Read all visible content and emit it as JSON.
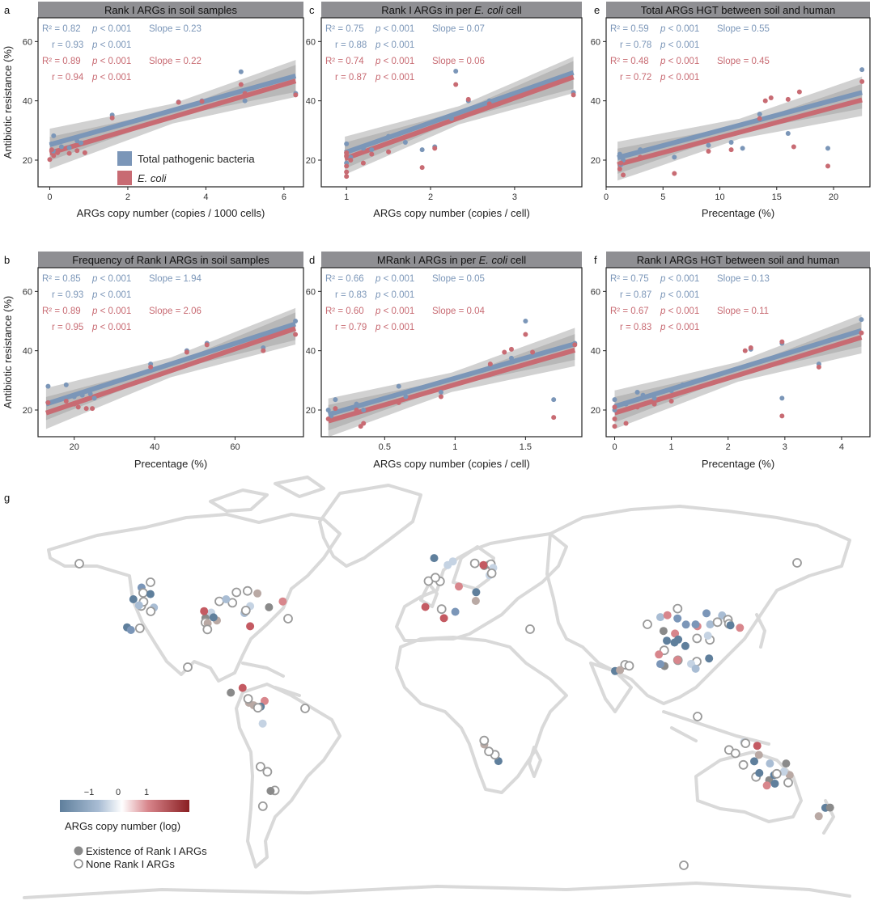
{
  "colors": {
    "blue": "#7b96b8",
    "red": "#c86b73",
    "ribbon": "#9a9a9a",
    "header": "#8f8f93",
    "land": "#d9d9d9",
    "ring": "#9a9a9a"
  },
  "legend_top": {
    "items": [
      {
        "label": "Total pathogenic bacteria",
        "italic": false
      },
      {
        "label": "E. coli",
        "italic": true
      }
    ]
  },
  "chart_data": [
    {
      "panel": "a",
      "type": "scatter",
      "title": "Rank I ARGs in soil samples",
      "xlabel": "ARGs copy number (copies / 1000 cells)",
      "ylabel": "Antibiotic resistance (%)",
      "xlim": [
        -0.3,
        6.5
      ],
      "ylim": [
        11,
        68
      ],
      "xticks": [
        0,
        2,
        4,
        6
      ],
      "yticks": [
        20,
        40,
        60
      ],
      "stats": {
        "blue": [
          "R² = 0.82",
          "p < 0.001",
          "Slope = 0.23",
          "r = 0.93",
          "p < 0.001"
        ],
        "red": [
          "R² = 0.89",
          "p < 0.001",
          "Slope = 0.22",
          "r = 0.94",
          "p < 0.001"
        ]
      },
      "series": [
        {
          "name": "Total pathogenic bacteria",
          "color": "blue",
          "fit": [
            [
              0,
              25.2
            ],
            [
              6.3,
              48.4
            ]
          ],
          "points": [
            [
              0.1,
              28.2
            ],
            [
              0.05,
              25.5
            ],
            [
              0.3,
              24.5
            ],
            [
              0.5,
              24.2
            ],
            [
              0.7,
              26.5
            ],
            [
              0.8,
              25.8
            ],
            [
              1.6,
              35.2
            ],
            [
              3.3,
              39.6
            ],
            [
              3.9,
              40
            ],
            [
              4.9,
              49.8
            ],
            [
              5.0,
              40
            ],
            [
              6.3,
              42.5
            ],
            [
              0.1,
              23
            ]
          ]
        },
        {
          "name": "E. coli",
          "color": "red",
          "fit": [
            [
              0,
              22.4
            ],
            [
              6.3,
              46.7
            ]
          ],
          "points": [
            [
              0.0,
              20.2
            ],
            [
              0.1,
              21.5
            ],
            [
              0.2,
              22.5
            ],
            [
              0.5,
              22.3
            ],
            [
              0.7,
              23.2
            ],
            [
              0.9,
              22.5
            ],
            [
              1.6,
              34.2
            ],
            [
              3.3,
              39.5
            ],
            [
              3.9,
              39.8
            ],
            [
              4.9,
              45.5
            ],
            [
              5.0,
              42.5
            ],
            [
              6.3,
              42
            ],
            [
              0.05,
              23.5
            ]
          ]
        }
      ]
    },
    {
      "panel": "c",
      "type": "scatter",
      "title": "Rank I ARGs in per E. coli cell",
      "xlabel": "ARGs copy number (copies / cell)",
      "ylabel": "",
      "xlim": [
        0.7,
        3.8
      ],
      "ylim": [
        11,
        68
      ],
      "xticks": [
        1,
        2,
        3
      ],
      "yticks": [
        20,
        40,
        60
      ],
      "stats": {
        "blue": [
          "R² = 0.75",
          "p < 0.001",
          "Slope = 0.07",
          "r = 0.88",
          "p < 0.001"
        ],
        "red": [
          "R² = 0.74",
          "p < 0.001",
          "Slope = 0.06",
          "r = 0.87",
          "p < 0.001"
        ]
      },
      "series": [
        {
          "name": "Total pathogenic bacteria",
          "color": "blue",
          "fit": [
            [
              0.98,
              22.5
            ],
            [
              3.7,
              49.5
            ]
          ],
          "points": [
            [
              1.0,
              25.5
            ],
            [
              1.0,
              22.5
            ],
            [
              1.05,
              21
            ],
            [
              1.2,
              24
            ],
            [
              1.3,
              23.5
            ],
            [
              1.5,
              28
            ],
            [
              1.7,
              26
            ],
            [
              1.9,
              23.5
            ],
            [
              2.05,
              24.5
            ],
            [
              2.25,
              34
            ],
            [
              2.3,
              50
            ],
            [
              2.45,
              40
            ],
            [
              2.7,
              40
            ],
            [
              3.7,
              42.8
            ],
            [
              1.0,
              19
            ]
          ]
        },
        {
          "name": "E. coli",
          "color": "red",
          "fit": [
            [
              0.98,
              20.5
            ],
            [
              3.7,
              48
            ]
          ],
          "points": [
            [
              1.0,
              14.5
            ],
            [
              1.0,
              16
            ],
            [
              1.0,
              18
            ],
            [
              1.05,
              20
            ],
            [
              1.2,
              19
            ],
            [
              1.3,
              22
            ],
            [
              1.5,
              22.8
            ],
            [
              1.9,
              17.5
            ],
            [
              2.05,
              24
            ],
            [
              2.3,
              45.5
            ],
            [
              2.45,
              40.5
            ],
            [
              2.7,
              39
            ],
            [
              3.7,
              42
            ],
            [
              1.0,
              21.5
            ],
            [
              1.0,
              22.5
            ]
          ]
        }
      ]
    },
    {
      "panel": "e",
      "type": "scatter",
      "title": "Total ARGs HGT between soil and human",
      "xlabel": "Precentage (%)",
      "ylabel": "",
      "xlim": [
        0,
        23.2
      ],
      "ylim": [
        11,
        68
      ],
      "xticks": [
        0,
        5,
        10,
        15,
        20
      ],
      "yticks": [
        20,
        40,
        60
      ],
      "stats": {
        "blue": [
          "R² = 0.59",
          "p < 0.001",
          "Slope = 0.55",
          "r = 0.78",
          "p < 0.001"
        ],
        "red": [
          "R² = 0.48",
          "p < 0.001",
          "Slope = 0.45",
          "r = 0.72",
          "p < 0.001"
        ]
      },
      "series": [
        {
          "name": "Total pathogenic bacteria",
          "color": "blue",
          "fit": [
            [
              1.0,
              20.8
            ],
            [
              22.5,
              42.8
            ]
          ],
          "points": [
            [
              1.2,
              22
            ],
            [
              1.5,
              20
            ],
            [
              3,
              23.5
            ],
            [
              6,
              21
            ],
            [
              9,
              25
            ],
            [
              11,
              26
            ],
            [
              12,
              24
            ],
            [
              13.5,
              35.5
            ],
            [
              16,
              29
            ],
            [
              19.5,
              24
            ],
            [
              22.5,
              50.5
            ],
            [
              1.3,
              18.5
            ]
          ]
        },
        {
          "name": "E. coli",
          "color": "red",
          "fit": [
            [
              1.0,
              18.5
            ],
            [
              22.5,
              40.3
            ]
          ],
          "points": [
            [
              1.2,
              17
            ],
            [
              1.5,
              15
            ],
            [
              3,
              21
            ],
            [
              6,
              15.5
            ],
            [
              9,
              23
            ],
            [
              11,
              23.5
            ],
            [
              13.5,
              34
            ],
            [
              14,
              40
            ],
            [
              14.5,
              41
            ],
            [
              16,
              40.5
            ],
            [
              16.5,
              24.5
            ],
            [
              17,
              43
            ],
            [
              19.5,
              18
            ],
            [
              22.5,
              46.5
            ],
            [
              1.3,
              19
            ]
          ]
        }
      ]
    },
    {
      "panel": "b",
      "type": "scatter",
      "title": "Frequency of Rank I ARGs in soil samples",
      "xlabel": "Precentage (%)",
      "ylabel": "Antibiotic resistance (%)",
      "xlim": [
        11,
        77
      ],
      "ylim": [
        11,
        68
      ],
      "xticks": [
        20,
        40,
        60
      ],
      "yticks": [
        20,
        40,
        60
      ],
      "stats": {
        "blue": [
          "R² = 0.85",
          "p < 0.001",
          "Slope = 1.94",
          "r = 0.93",
          "p < 0.001"
        ],
        "red": [
          "R² = 0.89",
          "p < 0.001",
          "Slope = 2.06",
          "r = 0.95",
          "p < 0.001"
        ]
      },
      "series": [
        {
          "name": "Total pathogenic bacteria",
          "color": "blue",
          "fit": [
            [
              13,
              22
            ],
            [
              75,
              49
            ]
          ],
          "points": [
            [
              13.5,
              28
            ],
            [
              18,
              28.5
            ],
            [
              20,
              24.5
            ],
            [
              22,
              25
            ],
            [
              24,
              25.5
            ],
            [
              25,
              24
            ],
            [
              39,
              35.5
            ],
            [
              48,
              40
            ],
            [
              53,
              42.5
            ],
            [
              67,
              41
            ],
            [
              75,
              50
            ]
          ]
        },
        {
          "name": "E. coli",
          "color": "red",
          "fit": [
            [
              13,
              19
            ],
            [
              75,
              47.5
            ]
          ],
          "points": [
            [
              13.5,
              22.5
            ],
            [
              18,
              23
            ],
            [
              20,
              22
            ],
            [
              21,
              21
            ],
            [
              23,
              20.5
            ],
            [
              24.5,
              20.5
            ],
            [
              39,
              34.5
            ],
            [
              48,
              39.5
            ],
            [
              53,
              42
            ],
            [
              67,
              40
            ],
            [
              75,
              45.5
            ]
          ]
        }
      ]
    },
    {
      "panel": "d",
      "type": "scatter",
      "title": "MRank I ARGs in per E. coli cell",
      "xlabel": "ARGs copy number (copies / cell)",
      "ylabel": "",
      "xlim": [
        0.05,
        1.9
      ],
      "ylim": [
        11,
        68
      ],
      "xticks": [
        0.5,
        1.0,
        1.5
      ],
      "yticks": [
        20,
        40,
        60
      ],
      "stats": {
        "blue": [
          "R² = 0.66",
          "p < 0.001",
          "Slope = 0.05",
          "r = 0.83",
          "p < 0.001"
        ],
        "red": [
          "R² = 0.60",
          "p < 0.001",
          "Slope = 0.04",
          "r = 0.79",
          "p < 0.001"
        ]
      },
      "series": [
        {
          "name": "Total pathogenic bacteria",
          "color": "blue",
          "fit": [
            [
              0.1,
              18.5
            ],
            [
              1.85,
              42.3
            ]
          ],
          "points": [
            [
              0.1,
              20
            ],
            [
              0.15,
              23.5
            ],
            [
              0.3,
              22
            ],
            [
              0.35,
              20
            ],
            [
              0.6,
              28
            ],
            [
              0.65,
              24.5
            ],
            [
              0.9,
              26
            ],
            [
              1.25,
              35
            ],
            [
              1.4,
              37.5
            ],
            [
              1.5,
              50
            ],
            [
              1.7,
              23.5
            ],
            [
              1.85,
              42.5
            ],
            [
              0.12,
              18
            ]
          ]
        },
        {
          "name": "E. coli",
          "color": "red",
          "fit": [
            [
              0.1,
              16.3
            ],
            [
              1.85,
              40.2
            ]
          ],
          "points": [
            [
              0.1,
              17
            ],
            [
              0.15,
              20.5
            ],
            [
              0.3,
              20
            ],
            [
              0.33,
              14.5
            ],
            [
              0.35,
              15.5
            ],
            [
              0.6,
              22.5
            ],
            [
              0.9,
              24.5
            ],
            [
              1.25,
              35.5
            ],
            [
              1.35,
              39.5
            ],
            [
              1.4,
              40.5
            ],
            [
              1.5,
              45.5
            ],
            [
              1.55,
              39.5
            ],
            [
              1.7,
              17.5
            ],
            [
              1.85,
              42
            ]
          ]
        }
      ]
    },
    {
      "panel": "f",
      "type": "scatter",
      "title": "Rank I ARGs HGT between soil and human",
      "xlabel": "Precentage (%)",
      "ylabel": "",
      "xlim": [
        -0.15,
        4.5
      ],
      "ylim": [
        11,
        68
      ],
      "xticks": [
        0,
        1,
        2,
        3,
        4
      ],
      "yticks": [
        20,
        40,
        60
      ],
      "stats": {
        "blue": [
          "R² = 0.75",
          "p < 0.001",
          "Slope = 0.13",
          "r = 0.87",
          "p < 0.001"
        ],
        "red": [
          "R² = 0.67",
          "p < 0.001",
          "Slope = 0.11",
          "r = 0.83",
          "p < 0.001"
        ]
      },
      "series": [
        {
          "name": "Total pathogenic bacteria",
          "color": "blue",
          "fit": [
            [
              0,
              21.2
            ],
            [
              4.35,
              46.8
            ]
          ],
          "points": [
            [
              0,
              23.5
            ],
            [
              0.2,
              22
            ],
            [
              0.4,
              26
            ],
            [
              0.5,
              25
            ],
            [
              0.7,
              24
            ],
            [
              1.0,
              26.5
            ],
            [
              1.2,
              28.5
            ],
            [
              2.4,
              40.5
            ],
            [
              2.95,
              24
            ],
            [
              2.95,
              42.5
            ],
            [
              3.6,
              35.5
            ],
            [
              4.35,
              50.5
            ],
            [
              0.0,
              20
            ]
          ]
        },
        {
          "name": "E. coli",
          "color": "red",
          "fit": [
            [
              0,
              19
            ],
            [
              4.35,
              44.5
            ]
          ],
          "points": [
            [
              0,
              14.5
            ],
            [
              0,
              17
            ],
            [
              0.2,
              15.5
            ],
            [
              0.4,
              21
            ],
            [
              0.7,
              22
            ],
            [
              1.0,
              23
            ],
            [
              2.3,
              40
            ],
            [
              2.4,
              41
            ],
            [
              2.95,
              18
            ],
            [
              2.95,
              43
            ],
            [
              3.6,
              34.5
            ],
            [
              4.35,
              46
            ],
            [
              0.0,
              21
            ]
          ]
        }
      ]
    },
    {
      "panel": "g",
      "type": "map",
      "colorbar": {
        "ticks": [
          "−1",
          "0",
          "1"
        ],
        "title": "ARGs copy number (log)"
      },
      "legend": [
        {
          "label": "Existence of Rank I ARGs",
          "marker": "filled"
        },
        {
          "label": "None Rank I ARGs",
          "marker": "open"
        }
      ]
    }
  ]
}
